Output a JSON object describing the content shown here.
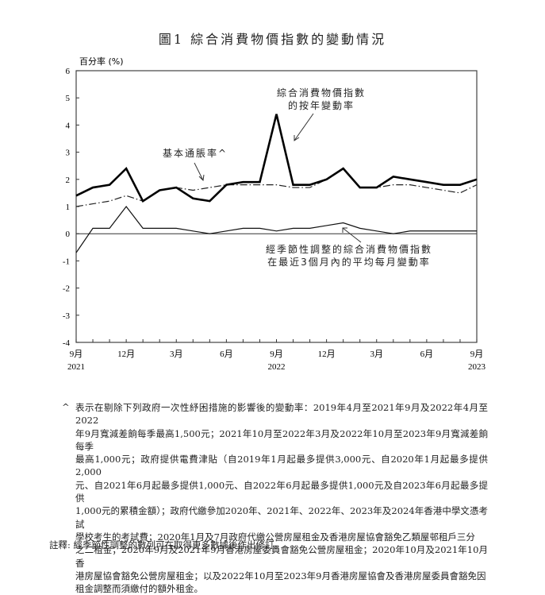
{
  "title": "圖1  綜合消費物價指數的變動情況",
  "chart_data": {
    "type": "line",
    "title": "綜合消費物價指數的變動情況",
    "ylabel": "百分率 (%)",
    "xlabel": "",
    "ylim": [
      -4,
      6
    ],
    "yticks": [
      6,
      5,
      4,
      3,
      2,
      1,
      0,
      -1,
      -2,
      -3,
      -4
    ],
    "x": [
      "2021-09",
      "2021-10",
      "2021-11",
      "2021-12",
      "2022-01",
      "2022-02",
      "2022-03",
      "2022-04",
      "2022-05",
      "2022-06",
      "2022-07",
      "2022-08",
      "2022-09",
      "2022-10",
      "2022-11",
      "2022-12",
      "2023-01",
      "2023-02",
      "2023-03",
      "2023-04",
      "2023-05",
      "2023-06",
      "2023-07",
      "2023-08",
      "2023-09"
    ],
    "xtick_labels": [
      {
        "month": "9月",
        "year": "2021",
        "index": 0
      },
      {
        "month": "12月",
        "year": "",
        "index": 3
      },
      {
        "month": "3月",
        "year": "",
        "index": 6
      },
      {
        "month": "6月",
        "year": "",
        "index": 9
      },
      {
        "month": "9月",
        "year": "2022",
        "index": 12
      },
      {
        "month": "12月",
        "year": "",
        "index": 15
      },
      {
        "month": "3月",
        "year": "",
        "index": 18
      },
      {
        "month": "6月",
        "year": "",
        "index": 21
      },
      {
        "month": "9月",
        "year": "2023",
        "index": 24
      }
    ],
    "series": [
      {
        "name": "綜合消費物價指數的按年變動率",
        "style": "solid-thick",
        "values": [
          1.4,
          1.7,
          1.8,
          2.4,
          1.2,
          1.6,
          1.7,
          1.3,
          1.2,
          1.8,
          1.9,
          1.9,
          4.4,
          1.8,
          1.8,
          2.0,
          2.4,
          1.7,
          1.7,
          2.1,
          2.0,
          1.9,
          1.8,
          1.8,
          2.0
        ]
      },
      {
        "name": "基本通脹率^",
        "style": "dash-dot",
        "values": [
          1.0,
          1.1,
          1.2,
          1.4,
          1.2,
          1.6,
          1.7,
          1.6,
          1.7,
          1.8,
          1.8,
          1.8,
          1.8,
          1.7,
          1.7,
          2.0,
          2.4,
          1.7,
          1.7,
          1.8,
          1.8,
          1.7,
          1.6,
          1.5,
          1.8
        ]
      },
      {
        "name": "經季節性調整的綜合消費物價指數在最近3個月內的平均每月變動率",
        "style": "solid-thin",
        "values": [
          -0.7,
          0.2,
          0.2,
          1.0,
          0.2,
          0.2,
          0.2,
          0.1,
          0.0,
          0.1,
          0.2,
          0.2,
          0.1,
          0.2,
          0.2,
          0.3,
          0.4,
          0.2,
          0.1,
          0.0,
          0.1,
          0.1,
          0.1,
          0.1,
          0.1
        ]
      }
    ],
    "annotations": [
      {
        "text_lines": [
          "綜合消費物價指數",
          "的按年變動率"
        ]
      },
      {
        "text_lines": [
          "基本通脹率^"
        ]
      },
      {
        "text_lines": [
          "經季節性調整的綜合消費物價指數",
          "在最近3個月內的平均每月變動率"
        ]
      }
    ],
    "grid": false
  },
  "footnote_marker": "^",
  "footnote_lines": [
    "表示在剔除下列政府一次性紓困措施的影響後的變動率：2019年4月至2021年9月及2022年4月至2022",
    "年9月寬減差餉每季最高1,500元；2021年10月至2022年3月及2022年10月至2023年9月寬減差餉每季",
    "最高1,000元；政府提供電費津貼（自2019年1月起最多提供3,000元、自2020年1月起最多提供2,000",
    "元、自2021年6月起最多提供1,000元、自2022年6月起最多提供1,000元及自2023年6月起最多提供",
    "1,000元的累積金額）；政府代繳參加2020年、2021年、2022年、2023年及2024年香港中學文憑考試",
    "學校考生的考試費；2020年1月及7月政府代繳公營房屋租金及香港房屋協會豁免乙類屋邨租戶三分",
    "之二租金；2020年9月及2021年9月香港房屋委員會豁免公營房屋租金；2020年10月及2021年10月香",
    "港房屋協會豁免公營房屋租金；以及2022年10月至2023年9月香港房屋協會及香港房屋委員會豁免因",
    "租金調整而須繳付的額外租金。"
  ],
  "remark": "註釋:  經季節性調整的數列可在取得更多數據後作出修訂。"
}
